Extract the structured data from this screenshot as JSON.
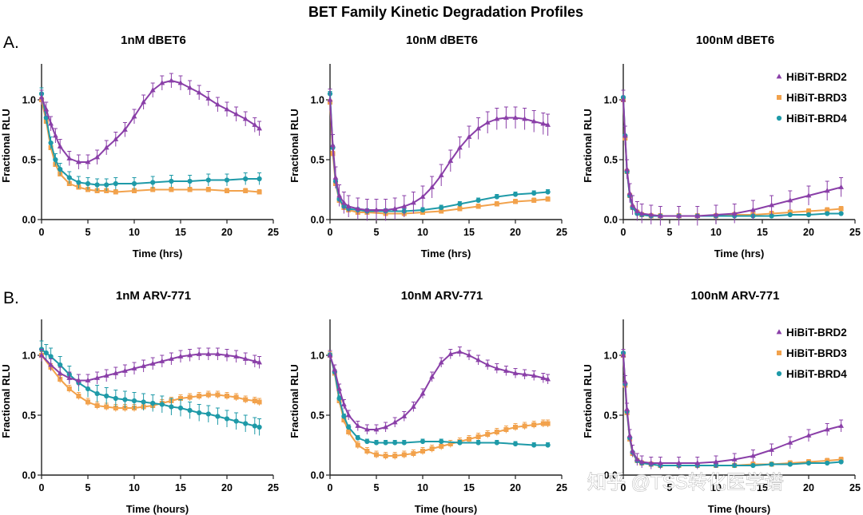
{
  "figure": {
    "title": "BET Family Kinetic Degradation Profiles",
    "rows": [
      {
        "label": "A."
      },
      {
        "label": "B."
      }
    ],
    "watermark": "知乎 @TSS转化医学谱"
  },
  "colors": {
    "HiBiT-BRD2": "#8a3fa8",
    "HiBiT-BRD3": "#f2a24c",
    "HiBiT-BRD4": "#1e9aa8"
  },
  "chart_data": [
    {
      "type": "line",
      "title": "1nM dBET6",
      "xlabel": "Time (hrs)",
      "ylabel": "Fractional RLU",
      "xlim": [
        0,
        25
      ],
      "ylim": [
        0,
        1.3
      ],
      "xticks": [
        "0",
        "5",
        "10",
        "15",
        "20",
        "25"
      ],
      "yticks": [
        "0.0",
        "0.5",
        "1.0"
      ],
      "legend": false,
      "series": [
        {
          "name": "HiBiT-BRD2",
          "marker": "triangle",
          "x": [
            0,
            0.5,
            1,
            1.5,
            2,
            3,
            4,
            5,
            6,
            7,
            8,
            9,
            10,
            11,
            12,
            13,
            14,
            15,
            16,
            17,
            18,
            19,
            20,
            21,
            22,
            23,
            23.5
          ],
          "y": [
            1.02,
            0.92,
            0.8,
            0.7,
            0.61,
            0.51,
            0.48,
            0.48,
            0.52,
            0.6,
            0.67,
            0.75,
            0.86,
            0.98,
            1.08,
            1.14,
            1.16,
            1.14,
            1.1,
            1.06,
            1.01,
            0.96,
            0.92,
            0.88,
            0.84,
            0.79,
            0.76
          ],
          "err": 0.06
        },
        {
          "name": "HiBiT-BRD3",
          "marker": "square",
          "x": [
            0,
            0.5,
            1,
            1.5,
            2,
            3,
            4,
            5,
            6,
            7,
            8,
            10,
            12,
            14,
            16,
            18,
            20,
            22,
            23.5
          ],
          "y": [
            1.0,
            0.82,
            0.6,
            0.46,
            0.38,
            0.3,
            0.27,
            0.25,
            0.24,
            0.24,
            0.23,
            0.24,
            0.25,
            0.25,
            0.25,
            0.25,
            0.24,
            0.24,
            0.23
          ],
          "err": 0.02
        },
        {
          "name": "HiBiT-BRD4",
          "marker": "circle",
          "x": [
            0,
            0.5,
            1,
            1.5,
            2,
            3,
            4,
            5,
            6,
            7,
            8,
            10,
            12,
            14,
            16,
            18,
            20,
            22,
            23.5
          ],
          "y": [
            1.05,
            0.85,
            0.64,
            0.5,
            0.42,
            0.35,
            0.31,
            0.3,
            0.29,
            0.29,
            0.3,
            0.3,
            0.31,
            0.32,
            0.32,
            0.33,
            0.33,
            0.34,
            0.34
          ],
          "err": 0.05
        }
      ]
    },
    {
      "type": "line",
      "title": "10nM dBET6",
      "xlabel": "Time (hrs)",
      "ylabel": "Fractional RLU",
      "xlim": [
        0,
        25
      ],
      "ylim": [
        0,
        1.3
      ],
      "xticks": [
        "0",
        "5",
        "10",
        "15",
        "20",
        "25"
      ],
      "yticks": [
        "0.0",
        "0.5",
        "1.0"
      ],
      "legend": false,
      "series": [
        {
          "name": "HiBiT-BRD2",
          "marker": "triangle",
          "x": [
            0,
            0.3,
            0.6,
            1,
            1.5,
            2,
            3,
            4,
            5,
            6,
            7,
            8,
            9,
            10,
            11,
            12,
            13,
            14,
            15,
            16,
            17,
            18,
            19,
            20,
            21,
            22,
            23,
            23.5
          ],
          "y": [
            1.0,
            0.62,
            0.35,
            0.2,
            0.14,
            0.11,
            0.09,
            0.08,
            0.08,
            0.08,
            0.09,
            0.11,
            0.14,
            0.19,
            0.27,
            0.37,
            0.49,
            0.6,
            0.69,
            0.76,
            0.81,
            0.84,
            0.85,
            0.85,
            0.84,
            0.82,
            0.8,
            0.79
          ],
          "err": 0.09
        },
        {
          "name": "HiBiT-BRD3",
          "marker": "square",
          "x": [
            0,
            0.3,
            0.6,
            1,
            1.5,
            2,
            3,
            4,
            6,
            8,
            10,
            12,
            14,
            16,
            18,
            20,
            22,
            23.5
          ],
          "y": [
            0.98,
            0.55,
            0.3,
            0.16,
            0.1,
            0.08,
            0.06,
            0.06,
            0.05,
            0.05,
            0.06,
            0.07,
            0.09,
            0.11,
            0.13,
            0.15,
            0.16,
            0.17
          ],
          "err": 0.02
        },
        {
          "name": "HiBiT-BRD4",
          "marker": "circle",
          "x": [
            0,
            0.3,
            0.6,
            1,
            1.5,
            2,
            3,
            4,
            6,
            8,
            10,
            12,
            14,
            16,
            18,
            20,
            22,
            23.5
          ],
          "y": [
            1.05,
            0.6,
            0.32,
            0.17,
            0.11,
            0.09,
            0.08,
            0.07,
            0.07,
            0.07,
            0.08,
            0.1,
            0.13,
            0.16,
            0.19,
            0.21,
            0.22,
            0.23
          ],
          "err": 0.02
        }
      ]
    },
    {
      "type": "line",
      "title": "100nM dBET6",
      "xlabel": "Time (hrs)",
      "ylabel": "Fractional RLU",
      "xlim": [
        0,
        25
      ],
      "ylim": [
        0,
        1.3
      ],
      "xticks": [
        "0",
        "5",
        "10",
        "15",
        "20",
        "25"
      ],
      "yticks": [
        "0.0",
        "0.5",
        "1.0"
      ],
      "legend": true,
      "series": [
        {
          "name": "HiBiT-BRD2",
          "marker": "triangle",
          "x": [
            0,
            0.2,
            0.4,
            0.7,
            1,
            1.5,
            2,
            3,
            4,
            6,
            8,
            10,
            12,
            14,
            16,
            18,
            20,
            22,
            23.5
          ],
          "y": [
            1.0,
            0.7,
            0.42,
            0.22,
            0.12,
            0.07,
            0.05,
            0.04,
            0.03,
            0.03,
            0.03,
            0.04,
            0.05,
            0.08,
            0.12,
            0.16,
            0.2,
            0.24,
            0.27
          ],
          "err": 0.08
        },
        {
          "name": "HiBiT-BRD3",
          "marker": "square",
          "x": [
            0,
            0.2,
            0.4,
            0.7,
            1,
            1.5,
            2,
            3,
            4,
            6,
            8,
            10,
            12,
            14,
            16,
            18,
            20,
            22,
            23.5
          ],
          "y": [
            1.0,
            0.68,
            0.4,
            0.2,
            0.1,
            0.06,
            0.04,
            0.03,
            0.03,
            0.03,
            0.03,
            0.03,
            0.04,
            0.04,
            0.05,
            0.06,
            0.07,
            0.08,
            0.09
          ],
          "err": 0.02
        },
        {
          "name": "HiBiT-BRD4",
          "marker": "circle",
          "x": [
            0,
            0.2,
            0.4,
            0.7,
            1,
            1.5,
            2,
            3,
            4,
            6,
            8,
            10,
            12,
            14,
            16,
            18,
            20,
            22,
            23.5
          ],
          "y": [
            1.02,
            0.7,
            0.4,
            0.2,
            0.1,
            0.05,
            0.04,
            0.03,
            0.03,
            0.03,
            0.03,
            0.03,
            0.03,
            0.03,
            0.03,
            0.04,
            0.04,
            0.05,
            0.05
          ],
          "err": 0.01
        }
      ]
    },
    {
      "type": "line",
      "title": "1nM ARV-771",
      "xlabel": "Time (hours)",
      "ylabel": "Fractional RLU",
      "xlim": [
        0,
        25
      ],
      "ylim": [
        0,
        1.3
      ],
      "xticks": [
        "0",
        "5",
        "10",
        "15",
        "20",
        "25"
      ],
      "yticks": [
        "0.0",
        "0.5",
        "1.0"
      ],
      "legend": false,
      "series": [
        {
          "name": "HiBiT-BRD2",
          "marker": "triangle",
          "x": [
            0,
            1,
            2,
            3,
            4,
            5,
            6,
            7,
            8,
            9,
            10,
            11,
            12,
            13,
            14,
            15,
            16,
            17,
            18,
            19,
            20,
            21,
            22,
            23,
            23.5
          ],
          "y": [
            1.0,
            0.92,
            0.85,
            0.81,
            0.79,
            0.79,
            0.81,
            0.83,
            0.85,
            0.87,
            0.89,
            0.91,
            0.93,
            0.95,
            0.97,
            0.99,
            1.0,
            1.01,
            1.01,
            1.01,
            1.0,
            0.99,
            0.97,
            0.95,
            0.94
          ],
          "err": 0.05
        },
        {
          "name": "HiBiT-BRD3",
          "marker": "square",
          "x": [
            0,
            1,
            2,
            3,
            4,
            5,
            6,
            7,
            8,
            9,
            10,
            11,
            12,
            13,
            14,
            15,
            16,
            17,
            18,
            19,
            20,
            21,
            22,
            23,
            23.5
          ],
          "y": [
            1.0,
            0.9,
            0.8,
            0.72,
            0.66,
            0.61,
            0.58,
            0.57,
            0.56,
            0.56,
            0.56,
            0.57,
            0.58,
            0.6,
            0.62,
            0.64,
            0.65,
            0.66,
            0.67,
            0.67,
            0.66,
            0.65,
            0.63,
            0.62,
            0.61
          ],
          "err": 0.03
        },
        {
          "name": "HiBiT-BRD4",
          "marker": "circle",
          "x": [
            0,
            0.5,
            1,
            2,
            3,
            4,
            5,
            6,
            7,
            8,
            9,
            10,
            11,
            12,
            13,
            14,
            15,
            16,
            17,
            18,
            19,
            20,
            21,
            22,
            23,
            23.5
          ],
          "y": [
            1.05,
            1.02,
            0.99,
            0.92,
            0.84,
            0.77,
            0.72,
            0.68,
            0.66,
            0.64,
            0.63,
            0.62,
            0.61,
            0.6,
            0.59,
            0.57,
            0.56,
            0.54,
            0.52,
            0.51,
            0.49,
            0.47,
            0.45,
            0.43,
            0.41,
            0.4
          ],
          "err": 0.07
        }
      ]
    },
    {
      "type": "line",
      "title": "10nM ARV-771",
      "xlabel": "Time (hours)",
      "ylabel": "Fractional RLU",
      "xlim": [
        0,
        25
      ],
      "ylim": [
        0,
        1.3
      ],
      "xticks": [
        "0",
        "5",
        "10",
        "15",
        "20",
        "25"
      ],
      "yticks": [
        "0.0",
        "0.5",
        "1.0"
      ],
      "legend": false,
      "series": [
        {
          "name": "HiBiT-BRD2",
          "marker": "triangle",
          "x": [
            0,
            0.5,
            1,
            1.5,
            2,
            3,
            4,
            5,
            6,
            7,
            8,
            9,
            10,
            11,
            12,
            13,
            14,
            15,
            16,
            17,
            18,
            19,
            20,
            21,
            22,
            23,
            23.5
          ],
          "y": [
            1.0,
            0.88,
            0.72,
            0.59,
            0.5,
            0.41,
            0.38,
            0.38,
            0.4,
            0.44,
            0.49,
            0.57,
            0.68,
            0.82,
            0.94,
            1.01,
            1.03,
            1.0,
            0.96,
            0.92,
            0.89,
            0.87,
            0.85,
            0.84,
            0.83,
            0.81,
            0.8
          ],
          "err": 0.04
        },
        {
          "name": "HiBiT-BRD3",
          "marker": "square",
          "x": [
            0,
            0.5,
            1,
            1.5,
            2,
            3,
            4,
            5,
            6,
            7,
            8,
            9,
            10,
            11,
            12,
            13,
            14,
            15,
            16,
            17,
            18,
            19,
            20,
            21,
            22,
            23,
            23.5
          ],
          "y": [
            1.0,
            0.85,
            0.62,
            0.46,
            0.36,
            0.25,
            0.2,
            0.17,
            0.16,
            0.16,
            0.17,
            0.18,
            0.2,
            0.22,
            0.24,
            0.26,
            0.28,
            0.3,
            0.32,
            0.34,
            0.36,
            0.38,
            0.4,
            0.41,
            0.42,
            0.43,
            0.43
          ],
          "err": 0.03
        },
        {
          "name": "HiBiT-BRD4",
          "marker": "circle",
          "x": [
            0,
            0.5,
            1,
            1.5,
            2,
            3,
            4,
            5,
            6,
            7,
            8,
            10,
            12,
            14,
            16,
            18,
            20,
            22,
            23.5
          ],
          "y": [
            1.0,
            0.86,
            0.64,
            0.49,
            0.4,
            0.31,
            0.28,
            0.27,
            0.27,
            0.27,
            0.27,
            0.28,
            0.28,
            0.27,
            0.27,
            0.27,
            0.26,
            0.25,
            0.25
          ],
          "err": 0.02
        }
      ]
    },
    {
      "type": "line",
      "title": "100nM ARV-771",
      "xlabel": "Time (hours)",
      "ylabel": "Fractional RLU",
      "xlim": [
        0,
        25
      ],
      "ylim": [
        0,
        1.3
      ],
      "xticks": [
        "0",
        "5",
        "10",
        "15",
        "20",
        "25"
      ],
      "yticks": [
        "0.0",
        "0.5",
        "1.0"
      ],
      "legend": true,
      "series": [
        {
          "name": "HiBiT-BRD2",
          "marker": "triangle",
          "x": [
            0,
            0.2,
            0.4,
            0.7,
            1,
            1.5,
            2,
            3,
            4,
            6,
            8,
            10,
            12,
            14,
            16,
            18,
            20,
            22,
            23.5
          ],
          "y": [
            1.0,
            0.78,
            0.55,
            0.33,
            0.2,
            0.13,
            0.11,
            0.1,
            0.1,
            0.1,
            0.1,
            0.11,
            0.13,
            0.16,
            0.21,
            0.27,
            0.33,
            0.38,
            0.41
          ],
          "err": 0.05
        },
        {
          "name": "HiBiT-BRD3",
          "marker": "square",
          "x": [
            0,
            0.2,
            0.4,
            0.7,
            1,
            1.5,
            2,
            3,
            4,
            6,
            8,
            10,
            12,
            14,
            16,
            18,
            20,
            22,
            23.5
          ],
          "y": [
            1.0,
            0.75,
            0.52,
            0.3,
            0.18,
            0.12,
            0.1,
            0.09,
            0.08,
            0.08,
            0.08,
            0.08,
            0.08,
            0.09,
            0.09,
            0.1,
            0.11,
            0.12,
            0.13
          ],
          "err": 0.02
        },
        {
          "name": "HiBiT-BRD4",
          "marker": "circle",
          "x": [
            0,
            0.2,
            0.4,
            0.7,
            1,
            1.5,
            2,
            3,
            4,
            6,
            8,
            10,
            12,
            14,
            16,
            18,
            20,
            22,
            23.5
          ],
          "y": [
            1.02,
            0.76,
            0.53,
            0.31,
            0.19,
            0.12,
            0.1,
            0.09,
            0.08,
            0.08,
            0.08,
            0.08,
            0.08,
            0.08,
            0.09,
            0.09,
            0.1,
            0.1,
            0.11
          ],
          "err": 0.01
        }
      ]
    }
  ]
}
